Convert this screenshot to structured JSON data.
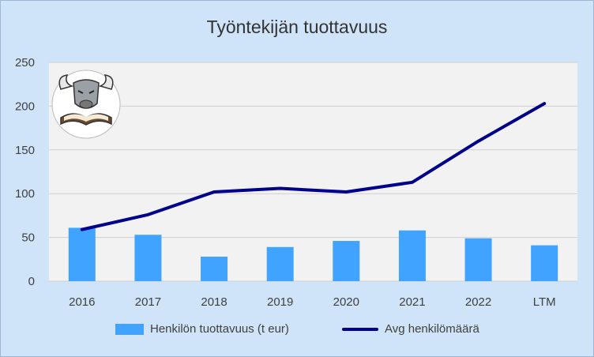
{
  "chart_data": {
    "type": "bar+line",
    "title": "Työntekijän tuottavuus",
    "categories": [
      "2016",
      "2017",
      "2018",
      "2019",
      "2020",
      "2021",
      "2022",
      "LTM"
    ],
    "series": [
      {
        "name": "Henkilön tuottavuus (t eur)",
        "type": "bar",
        "color": "#3fa3ff",
        "values": [
          61,
          53,
          28,
          39,
          46,
          58,
          49,
          41
        ]
      },
      {
        "name": "Avg henkilömäärä",
        "type": "line",
        "color": "#00008b",
        "values": [
          59,
          76,
          102,
          106,
          102,
          113,
          160,
          203
        ]
      }
    ],
    "y_ticks": [
      "0",
      "50",
      "100",
      "150",
      "200",
      "250"
    ],
    "ylim": [
      0,
      250
    ],
    "grid": true,
    "legend_position": "bottom",
    "plot_background": "#f2f2f2",
    "gridline_color": "#d0d0d0"
  },
  "logo": {
    "icon": "bull-reading-book-logo"
  }
}
